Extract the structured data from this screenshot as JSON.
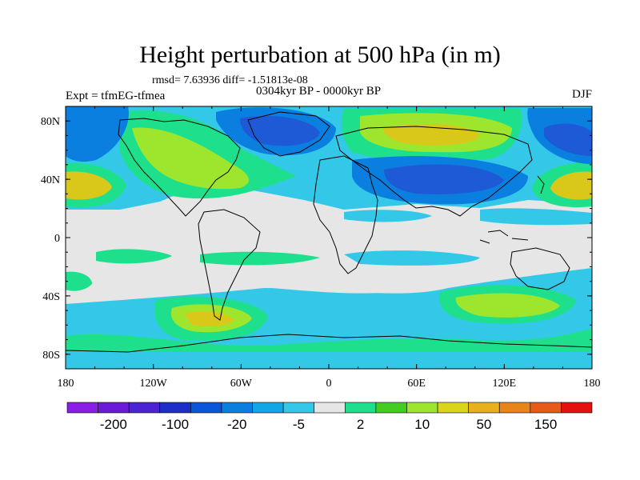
{
  "title": "Height perturbation at 500 hPa (in m)",
  "stats": "rmsd= 7.63936 diff= -1.51813e-08",
  "period": "0304kyr BP - 0000kyr BP",
  "experiment": "Expt = tfmEG-tfmea",
  "season": "DJF",
  "map": {
    "lon_ticks": [
      "180",
      "120W",
      "60W",
      "0",
      "60E",
      "120E",
      "180"
    ],
    "lat_ticks": [
      "80N",
      "40N",
      "0",
      "40S",
      "80S"
    ],
    "lon_values": [
      -180,
      -120,
      -60,
      0,
      60,
      120,
      180
    ],
    "lat_values": [
      80,
      40,
      0,
      -40,
      -80
    ],
    "lon_range": [
      -180,
      180
    ],
    "lat_range": [
      -90,
      90
    ]
  },
  "colorbar": {
    "colors": [
      "#8a1ee6",
      "#6a1ad9",
      "#4b23d4",
      "#1e2ec8",
      "#0a55d9",
      "#0a7fe0",
      "#11a6e6",
      "#33c8e8",
      "#e6e6e6",
      "#1ee08c",
      "#44cc22",
      "#9ee62e",
      "#d9d61a",
      "#e8b01a",
      "#e8841a",
      "#e85a1a",
      "#e61010"
    ],
    "labels": [
      {
        "text": "-200",
        "index": 1
      },
      {
        "text": "-100",
        "index": 3
      },
      {
        "text": "-20",
        "index": 5
      },
      {
        "text": "-5",
        "index": 7
      },
      {
        "text": "2",
        "index": 9
      },
      {
        "text": "10",
        "index": 11
      },
      {
        "text": "50",
        "index": 13
      },
      {
        "text": "150",
        "index": 15
      }
    ]
  },
  "palette": {
    "blue_dark": "#1e5ad6",
    "blue": "#0a7fe0",
    "light_blue": "#33c8e8",
    "green": "#1ee08c",
    "lime": "#9ee62e",
    "yellow": "#d9c81a",
    "neutral": "#e6e6e6"
  }
}
